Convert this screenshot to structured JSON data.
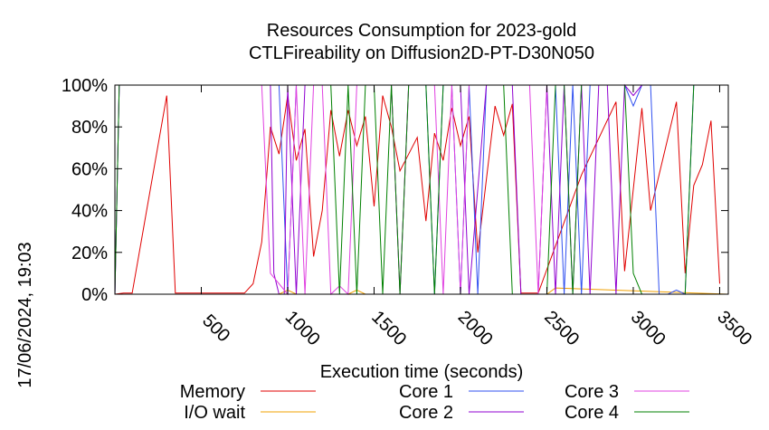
{
  "chart_data": {
    "type": "line",
    "title": "Resources Consumption for 2023-gold",
    "subtitle": "CTLFireability on Diffusion2D-PT-D30N050",
    "xlabel": "Execution time (seconds)",
    "ylabel": "",
    "side_label": "17/06/2024, 19:03",
    "xlim": [
      0,
      3550
    ],
    "ylim": [
      0,
      100
    ],
    "x_ticks": [
      500,
      1000,
      1500,
      2000,
      2500,
      3000,
      3500
    ],
    "y_ticks": [
      0,
      20,
      40,
      60,
      80,
      100
    ],
    "y_tick_labels": [
      "0%",
      "20%",
      "40%",
      "60%",
      "80%",
      "100%"
    ],
    "legend_position": "bottom",
    "series": [
      {
        "name": "Memory",
        "color": "#e00000",
        "x": [
          0,
          50,
          100,
          300,
          350,
          500,
          700,
          750,
          800,
          850,
          900,
          950,
          1000,
          1050,
          1100,
          1150,
          1200,
          1250,
          1300,
          1350,
          1400,
          1450,
          1500,
          1550,
          1600,
          1650,
          1700,
          1750,
          1800,
          1850,
          1900,
          1950,
          2000,
          2050,
          2100,
          2200,
          2250,
          2300,
          2350,
          2400,
          2450,
          2700,
          2900,
          2950,
          3050,
          3100,
          3250,
          3300,
          3350,
          3400,
          3450,
          3500
        ],
        "y": [
          0,
          0.5,
          0.5,
          95,
          0.5,
          0.5,
          0.5,
          0.5,
          5,
          25,
          80,
          67,
          95,
          64,
          79,
          18,
          40,
          88,
          66,
          88,
          71,
          85,
          42,
          95,
          80,
          59,
          67,
          75,
          35,
          77,
          64,
          89,
          71,
          85,
          20,
          90,
          76,
          91,
          0.5,
          0.5,
          0.5,
          57,
          92,
          11,
          89,
          40,
          92,
          10,
          52,
          62,
          83,
          5
        ]
      },
      {
        "name": "I/O wait",
        "color": "#f0a000",
        "x": [
          0,
          950,
          1000,
          1050,
          1350,
          1400,
          1450,
          2500,
          2550,
          3550
        ],
        "y": [
          0,
          0,
          2,
          0,
          0,
          2,
          0,
          0,
          3,
          0
        ]
      },
      {
        "name": "Core 1",
        "color": "#3050f0",
        "x": [
          0,
          25,
          50,
          950,
          1000,
          1050,
          1800,
          1850,
          1900,
          1950,
          2000,
          2050,
          2100,
          2150,
          2200,
          2550,
          2600,
          2650,
          2700,
          2750,
          2800,
          2950,
          3000,
          3050,
          3100,
          3150,
          3200,
          3250,
          3300,
          3350,
          3400,
          3550
        ],
        "y": [
          0,
          100,
          100,
          100,
          0,
          100,
          100,
          0,
          100,
          100,
          0,
          100,
          0,
          100,
          100,
          100,
          0,
          100,
          0,
          100,
          100,
          100,
          90,
          100,
          100,
          0,
          0,
          2,
          0,
          100,
          100,
          100
        ]
      },
      {
        "name": "Core 2",
        "color": "#9000d0",
        "x": [
          0,
          25,
          50,
          900,
          920,
          950,
          980,
          1000,
          1050,
          1100,
          1150,
          1200,
          1400,
          1450,
          1600,
          1650,
          1700,
          2000,
          2050,
          2150,
          2300,
          2350,
          2400,
          2450,
          2500,
          2550,
          2600,
          2650,
          2700,
          2750,
          2800,
          2850,
          2900,
          2950,
          3000,
          3050,
          3550
        ],
        "y": [
          0,
          100,
          100,
          100,
          10,
          0,
          0,
          100,
          0,
          100,
          100,
          100,
          100,
          100,
          100,
          0,
          100,
          100,
          0,
          100,
          100,
          0,
          0,
          0,
          100,
          0,
          100,
          0,
          100,
          0,
          100,
          100,
          0,
          100,
          95,
          100,
          100
        ]
      },
      {
        "name": "Core 3",
        "color": "#e040e0",
        "x": [
          0,
          25,
          50,
          850,
          900,
          1000,
          1050,
          1100,
          1150,
          1200,
          1250,
          1300,
          1350,
          1400,
          1450,
          1500,
          1550,
          1600,
          1650,
          1700,
          1750,
          1800,
          1850,
          1900,
          1950,
          2000,
          2050,
          2100,
          2150,
          2200,
          2250,
          2300,
          2350,
          2400,
          2450,
          2500,
          2550,
          2600,
          2650,
          2700,
          2750,
          2800,
          2850,
          2900,
          2950,
          3000,
          3300,
          3350,
          3550
        ],
        "y": [
          0,
          100,
          100,
          100,
          10,
          0,
          100,
          0,
          100,
          100,
          0,
          4,
          0,
          100,
          100,
          100,
          100,
          100,
          0,
          100,
          100,
          100,
          100,
          0,
          100,
          0,
          100,
          100,
          100,
          100,
          100,
          100,
          100,
          100,
          0,
          100,
          100,
          100,
          100,
          100,
          100,
          100,
          100,
          100,
          100,
          100,
          100,
          100,
          100
        ]
      },
      {
        "name": "Core 4",
        "color": "#008000",
        "x": [
          0,
          25,
          50,
          1250,
          1300,
          1350,
          1400,
          1450,
          1500,
          1550,
          1600,
          1650,
          1700,
          1750,
          1800,
          1850,
          1900,
          1950,
          2000,
          2050,
          2100,
          2250,
          2300,
          2350,
          2400,
          2450,
          2500,
          2550,
          2600,
          2650,
          2700,
          2750,
          2800,
          2850,
          2900,
          2950,
          3000,
          3050,
          3100,
          3150,
          3200,
          3250,
          3300,
          3350,
          3550
        ],
        "y": [
          0,
          100,
          100,
          100,
          0,
          100,
          0,
          100,
          100,
          0,
          100,
          0,
          100,
          100,
          100,
          0,
          100,
          100,
          100,
          100,
          100,
          100,
          0,
          0,
          0,
          0,
          0,
          100,
          100,
          0,
          100,
          100,
          100,
          100,
          100,
          100,
          10,
          0,
          0,
          0,
          0,
          0,
          0,
          100,
          100
        ]
      }
    ]
  }
}
